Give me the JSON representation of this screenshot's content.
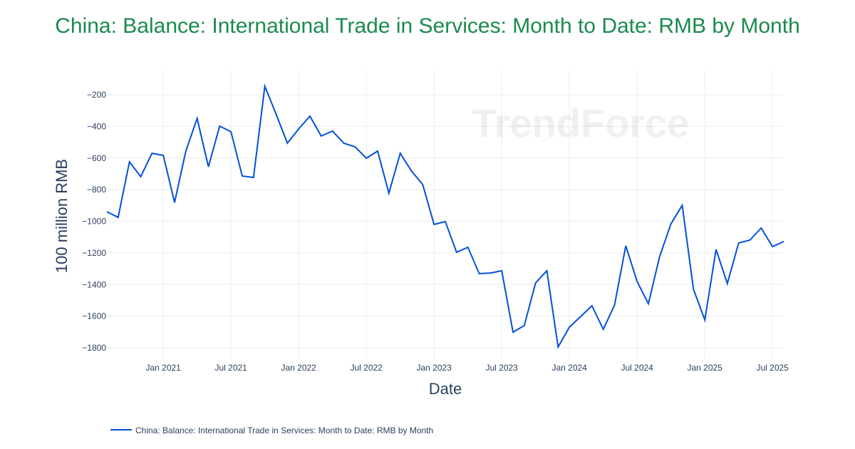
{
  "chart_data": {
    "type": "line",
    "title": "China: Balance: International Trade in Services: Month to Date: RMB by Month",
    "xlabel": "Date",
    "ylabel": "100 million RMB",
    "ylim": [
      -1850,
      -80
    ],
    "xlim": [
      "2020-08",
      "2025-08"
    ],
    "grid": true,
    "legend_position": "bottom-left",
    "watermark": "TrendForce",
    "line_color": "#0050d8",
    "title_color": "#1b8a4f",
    "x_ticks": [
      {
        "date": "2021-01",
        "label": "Jan 2021"
      },
      {
        "date": "2021-07",
        "label": "Jul 2021"
      },
      {
        "date": "2022-01",
        "label": "Jan 2022"
      },
      {
        "date": "2022-07",
        "label": "Jul 2022"
      },
      {
        "date": "2023-01",
        "label": "Jan 2023"
      },
      {
        "date": "2023-07",
        "label": "Jul 2023"
      },
      {
        "date": "2024-01",
        "label": "Jan 2024"
      },
      {
        "date": "2024-07",
        "label": "Jul 2024"
      },
      {
        "date": "2025-01",
        "label": "Jan 2025"
      },
      {
        "date": "2025-07",
        "label": "Jul 2025"
      }
    ],
    "y_ticks": [
      {
        "value": -200,
        "label": "−200"
      },
      {
        "value": -400,
        "label": "−400"
      },
      {
        "value": -600,
        "label": "−600"
      },
      {
        "value": -800,
        "label": "−800"
      },
      {
        "value": -1000,
        "label": "−1000"
      },
      {
        "value": -1200,
        "label": "−1200"
      },
      {
        "value": -1400,
        "label": "−1400"
      },
      {
        "value": -1600,
        "label": "−1600"
      },
      {
        "value": -1800,
        "label": "−1800"
      }
    ],
    "series": [
      {
        "name": "China: Balance: International Trade in Services: Month to Date: RMB by Month",
        "x": [
          "2020-08",
          "2020-09",
          "2020-10",
          "2020-11",
          "2020-12",
          "2021-01",
          "2021-02",
          "2021-03",
          "2021-04",
          "2021-05",
          "2021-06",
          "2021-07",
          "2021-08",
          "2021-09",
          "2021-10",
          "2021-11",
          "2021-12",
          "2022-01",
          "2022-02",
          "2022-03",
          "2022-04",
          "2022-05",
          "2022-06",
          "2022-07",
          "2022-08",
          "2022-09",
          "2022-10",
          "2022-11",
          "2022-12",
          "2023-01",
          "2023-02",
          "2023-03",
          "2023-04",
          "2023-05",
          "2023-06",
          "2023-07",
          "2023-08",
          "2023-09",
          "2023-10",
          "2023-11",
          "2023-12",
          "2024-01",
          "2024-02",
          "2024-03",
          "2024-04",
          "2024-05",
          "2024-06",
          "2024-07",
          "2024-08",
          "2024-09",
          "2024-10",
          "2024-11",
          "2024-12",
          "2025-01",
          "2025-02",
          "2025-03",
          "2025-04",
          "2025-05",
          "2025-06",
          "2025-07",
          "2025-08"
        ],
        "y": [
          -939,
          -975,
          -624,
          -718,
          -570,
          -583,
          -881,
          -556,
          -349,
          -655,
          -398,
          -434,
          -714,
          -723,
          -146,
          -322,
          -506,
          -416,
          -335,
          -461,
          -430,
          -506,
          -529,
          -601,
          -556,
          -822,
          -570,
          -682,
          -768,
          -1020,
          -1002,
          -1196,
          -1164,
          -1331,
          -1327,
          -1313,
          -1701,
          -1660,
          -1390,
          -1313,
          -1795,
          -1669,
          -1602,
          -1534,
          -1683,
          -1530,
          -1155,
          -1381,
          -1521,
          -1223,
          -1016,
          -899,
          -1430,
          -1624,
          -1178,
          -1394,
          -1137,
          -1119,
          -1043,
          -1160,
          -1128
        ]
      }
    ]
  }
}
